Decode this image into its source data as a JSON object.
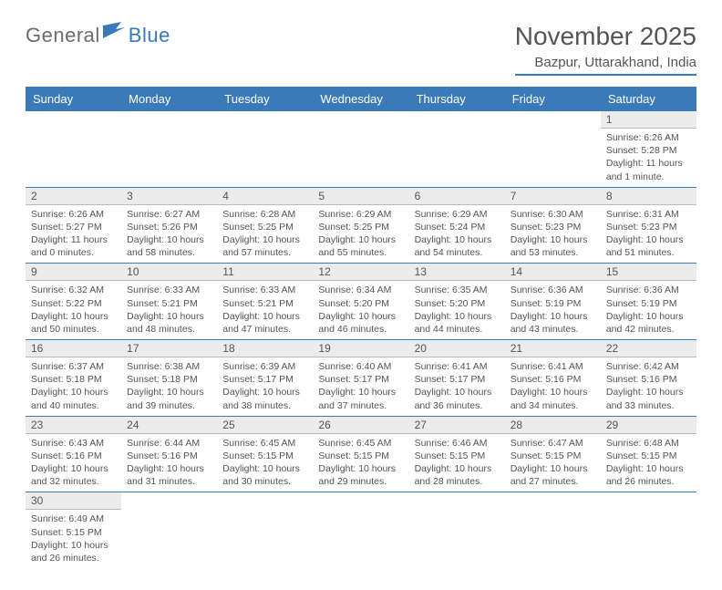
{
  "logo": {
    "word1": "General",
    "word2": "Blue"
  },
  "title": "November 2025",
  "subtitle": "Bazpur, Uttarakhand, India",
  "colors": {
    "accent": "#3a7ab8",
    "header_bg": "#3a7ab8",
    "header_text": "#ffffff",
    "daynum_bg": "#ececec",
    "text": "#555555",
    "logo_gray": "#6b6b6b"
  },
  "weekdays": [
    "Sunday",
    "Monday",
    "Tuesday",
    "Wednesday",
    "Thursday",
    "Friday",
    "Saturday"
  ],
  "weeks": [
    [
      null,
      null,
      null,
      null,
      null,
      null,
      {
        "n": "1",
        "sr": "6:26 AM",
        "ss": "5:28 PM",
        "dl": "11 hours and 1 minute."
      }
    ],
    [
      {
        "n": "2",
        "sr": "6:26 AM",
        "ss": "5:27 PM",
        "dl": "11 hours and 0 minutes."
      },
      {
        "n": "3",
        "sr": "6:27 AM",
        "ss": "5:26 PM",
        "dl": "10 hours and 58 minutes."
      },
      {
        "n": "4",
        "sr": "6:28 AM",
        "ss": "5:25 PM",
        "dl": "10 hours and 57 minutes."
      },
      {
        "n": "5",
        "sr": "6:29 AM",
        "ss": "5:25 PM",
        "dl": "10 hours and 55 minutes."
      },
      {
        "n": "6",
        "sr": "6:29 AM",
        "ss": "5:24 PM",
        "dl": "10 hours and 54 minutes."
      },
      {
        "n": "7",
        "sr": "6:30 AM",
        "ss": "5:23 PM",
        "dl": "10 hours and 53 minutes."
      },
      {
        "n": "8",
        "sr": "6:31 AM",
        "ss": "5:23 PM",
        "dl": "10 hours and 51 minutes."
      }
    ],
    [
      {
        "n": "9",
        "sr": "6:32 AM",
        "ss": "5:22 PM",
        "dl": "10 hours and 50 minutes."
      },
      {
        "n": "10",
        "sr": "6:33 AM",
        "ss": "5:21 PM",
        "dl": "10 hours and 48 minutes."
      },
      {
        "n": "11",
        "sr": "6:33 AM",
        "ss": "5:21 PM",
        "dl": "10 hours and 47 minutes."
      },
      {
        "n": "12",
        "sr": "6:34 AM",
        "ss": "5:20 PM",
        "dl": "10 hours and 46 minutes."
      },
      {
        "n": "13",
        "sr": "6:35 AM",
        "ss": "5:20 PM",
        "dl": "10 hours and 44 minutes."
      },
      {
        "n": "14",
        "sr": "6:36 AM",
        "ss": "5:19 PM",
        "dl": "10 hours and 43 minutes."
      },
      {
        "n": "15",
        "sr": "6:36 AM",
        "ss": "5:19 PM",
        "dl": "10 hours and 42 minutes."
      }
    ],
    [
      {
        "n": "16",
        "sr": "6:37 AM",
        "ss": "5:18 PM",
        "dl": "10 hours and 40 minutes."
      },
      {
        "n": "17",
        "sr": "6:38 AM",
        "ss": "5:18 PM",
        "dl": "10 hours and 39 minutes."
      },
      {
        "n": "18",
        "sr": "6:39 AM",
        "ss": "5:17 PM",
        "dl": "10 hours and 38 minutes."
      },
      {
        "n": "19",
        "sr": "6:40 AM",
        "ss": "5:17 PM",
        "dl": "10 hours and 37 minutes."
      },
      {
        "n": "20",
        "sr": "6:41 AM",
        "ss": "5:17 PM",
        "dl": "10 hours and 36 minutes."
      },
      {
        "n": "21",
        "sr": "6:41 AM",
        "ss": "5:16 PM",
        "dl": "10 hours and 34 minutes."
      },
      {
        "n": "22",
        "sr": "6:42 AM",
        "ss": "5:16 PM",
        "dl": "10 hours and 33 minutes."
      }
    ],
    [
      {
        "n": "23",
        "sr": "6:43 AM",
        "ss": "5:16 PM",
        "dl": "10 hours and 32 minutes."
      },
      {
        "n": "24",
        "sr": "6:44 AM",
        "ss": "5:16 PM",
        "dl": "10 hours and 31 minutes."
      },
      {
        "n": "25",
        "sr": "6:45 AM",
        "ss": "5:15 PM",
        "dl": "10 hours and 30 minutes."
      },
      {
        "n": "26",
        "sr": "6:45 AM",
        "ss": "5:15 PM",
        "dl": "10 hours and 29 minutes."
      },
      {
        "n": "27",
        "sr": "6:46 AM",
        "ss": "5:15 PM",
        "dl": "10 hours and 28 minutes."
      },
      {
        "n": "28",
        "sr": "6:47 AM",
        "ss": "5:15 PM",
        "dl": "10 hours and 27 minutes."
      },
      {
        "n": "29",
        "sr": "6:48 AM",
        "ss": "5:15 PM",
        "dl": "10 hours and 26 minutes."
      }
    ],
    [
      {
        "n": "30",
        "sr": "6:49 AM",
        "ss": "5:15 PM",
        "dl": "10 hours and 26 minutes."
      },
      null,
      null,
      null,
      null,
      null,
      null
    ]
  ],
  "labels": {
    "sunrise": "Sunrise:",
    "sunset": "Sunset:",
    "daylight": "Daylight:"
  }
}
